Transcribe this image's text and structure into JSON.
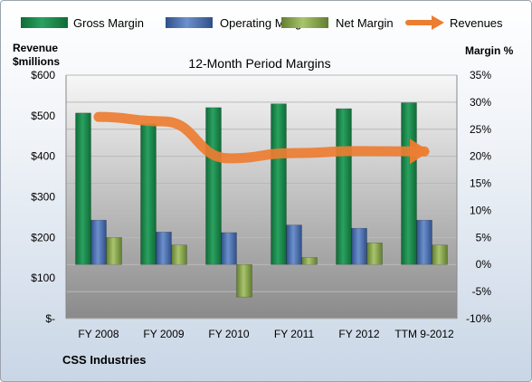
{
  "chart_data": {
    "type": "bar",
    "title": "12-Month Period Margins",
    "left_axis_title": [
      "Revenue",
      "$millions"
    ],
    "right_axis_title": "Margin %",
    "footer": "CSS Industries",
    "categories": [
      "FY 2008",
      "FY 2009",
      "FY 2010",
      "FY 2011",
      "FY 2012",
      "TTM 9-2012"
    ],
    "left_ticks": [
      "$-",
      "$100",
      "$200",
      "$300",
      "$400",
      "$500",
      "$600"
    ],
    "right_ticks": [
      "-10%",
      "-5%",
      "0%",
      "5%",
      "10%",
      "15%",
      "20%",
      "25%",
      "30%",
      "35%"
    ],
    "left_ylim": [
      0,
      600
    ],
    "right_ylim": [
      -10,
      35
    ],
    "legend_position": "top",
    "series": [
      {
        "name": "Gross Margin",
        "axis": "right",
        "kind": "bar",
        "color": "#1e8a4d",
        "values": [
          28,
          26,
          29,
          29.7,
          28.8,
          29.9
        ]
      },
      {
        "name": "Operating Margin",
        "axis": "right",
        "kind": "bar",
        "color": "#4a6fb0",
        "values": [
          8.2,
          6,
          5.9,
          7.3,
          6.7,
          8.2
        ]
      },
      {
        "name": "Net Margin",
        "axis": "right",
        "kind": "bar",
        "color": "#8dab53",
        "values": [
          5,
          3.6,
          -6,
          1.3,
          4,
          3.6
        ]
      },
      {
        "name": "Revenues",
        "axis": "left",
        "kind": "line",
        "color": "#ed7d31",
        "values": [
          497,
          486,
          395,
          408,
          413,
          412
        ]
      }
    ]
  }
}
